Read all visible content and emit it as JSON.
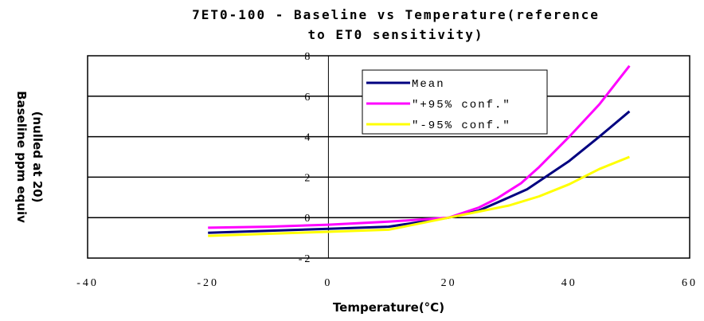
{
  "chart_data": {
    "type": "line",
    "title_line1": "7ET0-100 - Baseline vs Temperature(reference",
    "title_line2": "to ET0 sensitivity)",
    "xlabel": "Temperature(°C)",
    "ylabel_line1": "Baseline ppm equiv",
    "ylabel_line2": "(nulled at 20)",
    "xlim": [
      -40,
      60
    ],
    "ylim": [
      -2,
      8
    ],
    "x_ticks": [
      "-40",
      "-20",
      "0",
      "20",
      "40",
      "60"
    ],
    "y_ticks": [
      "-2",
      "0",
      "2",
      "4",
      "6",
      "8"
    ],
    "grid": "horizontal",
    "legend_position": "top-center",
    "series": [
      {
        "name": "Mean",
        "color": "#000080",
        "x": [
          -20,
          -10,
          0,
          10,
          20,
          25,
          30,
          33,
          40,
          45,
          50
        ],
        "y": [
          -0.75,
          -0.65,
          -0.55,
          -0.45,
          0.0,
          0.35,
          1.0,
          1.4,
          2.8,
          4.0,
          5.25
        ]
      },
      {
        "name": "\"+95% conf.\"",
        "color": "#ff00ff",
        "x": [
          -20,
          -10,
          0,
          10,
          20,
          25,
          28,
          32,
          35,
          40,
          45,
          50
        ],
        "y": [
          -0.5,
          -0.45,
          -0.35,
          -0.2,
          0.0,
          0.5,
          0.95,
          1.7,
          2.5,
          4.0,
          5.6,
          7.5
        ]
      },
      {
        "name": "\"-95% conf.\"",
        "color": "#ffff00",
        "x": [
          -20,
          -10,
          0,
          10,
          20,
          25,
          30,
          35,
          40,
          45,
          50
        ],
        "y": [
          -0.9,
          -0.8,
          -0.7,
          -0.6,
          0.0,
          0.3,
          0.6,
          1.05,
          1.65,
          2.4,
          3.0
        ]
      }
    ]
  }
}
